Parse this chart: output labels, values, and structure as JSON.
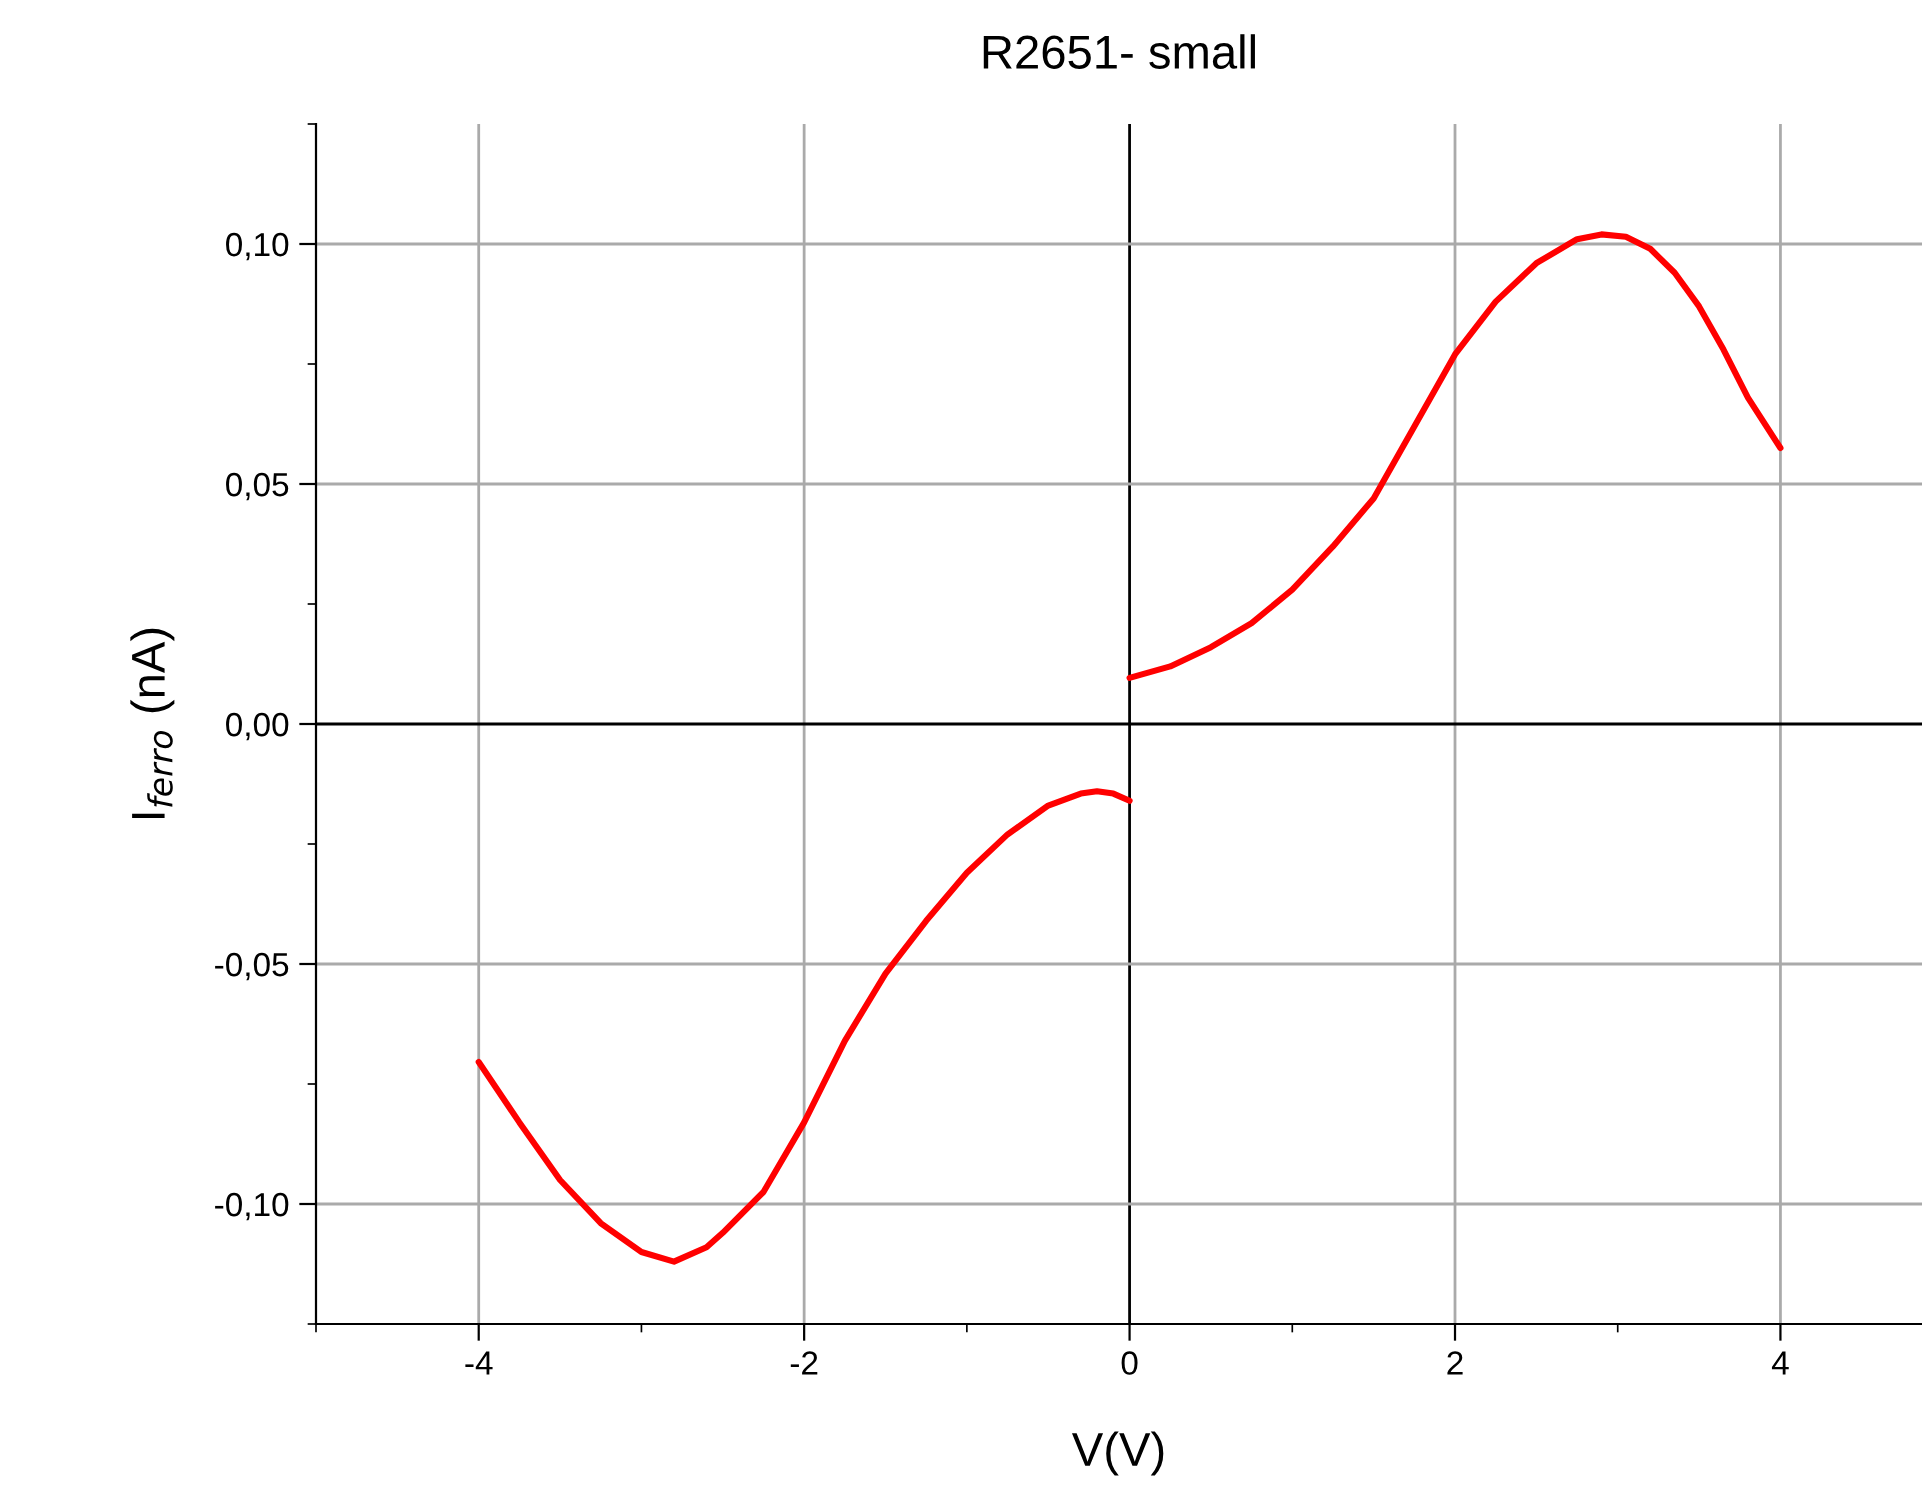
{
  "chart_data": {
    "type": "line",
    "title": "R2651- small",
    "xlabel": "V(V)",
    "ylabel": "I$_{ferro}$ (nA)",
    "xlim": [
      -5,
      4.87
    ],
    "xticks": [
      -4,
      -2,
      0,
      2,
      4
    ],
    "ylim": [
      -0.125,
      0.125
    ],
    "yticks": [
      {
        "value": -0.1,
        "label": "-0,10"
      },
      {
        "value": -0.05,
        "label": "-0,05"
      },
      {
        "value": 0,
        "label": "0,00"
      },
      {
        "value": 0.05,
        "label": "0,05"
      },
      {
        "value": 0.1,
        "label": "0,10"
      }
    ],
    "grid": true,
    "marker": "none",
    "line_style": "solid",
    "series": [
      {
        "color": "#ff0000",
        "x": [
          -4,
          -3.75,
          -3.5,
          -3.25,
          -3,
          -2.8,
          -2.6,
          -2.5,
          -2.25,
          -2,
          -1.75,
          -1.5,
          -1.25,
          -1,
          -0.75,
          -0.5,
          -0.3,
          -0.2,
          -0.1,
          0
        ],
        "values": [
          -0.0704,
          -0.083,
          -0.095,
          -0.104,
          -0.11,
          -0.112,
          -0.109,
          -0.106,
          -0.0975,
          -0.083,
          -0.066,
          -0.052,
          -0.041,
          -0.031,
          -0.023,
          -0.017,
          -0.0145,
          -0.014,
          -0.0145,
          -0.016
        ]
      },
      {
        "color": "#ff0000",
        "x": [
          0,
          0.25,
          0.5,
          0.75,
          1,
          1.25,
          1.5,
          1.75,
          2,
          2.25,
          2.5,
          2.75,
          2.9,
          3.05,
          3.2,
          3.35,
          3.5,
          3.65,
          3.8,
          4
        ],
        "values": [
          0.0096,
          0.012,
          0.016,
          0.021,
          0.028,
          0.037,
          0.047,
          0.062,
          0.077,
          0.088,
          0.096,
          0.101,
          0.102,
          0.1015,
          0.099,
          0.094,
          0.087,
          0.078,
          0.068,
          0.0575
        ]
      }
    ]
  }
}
